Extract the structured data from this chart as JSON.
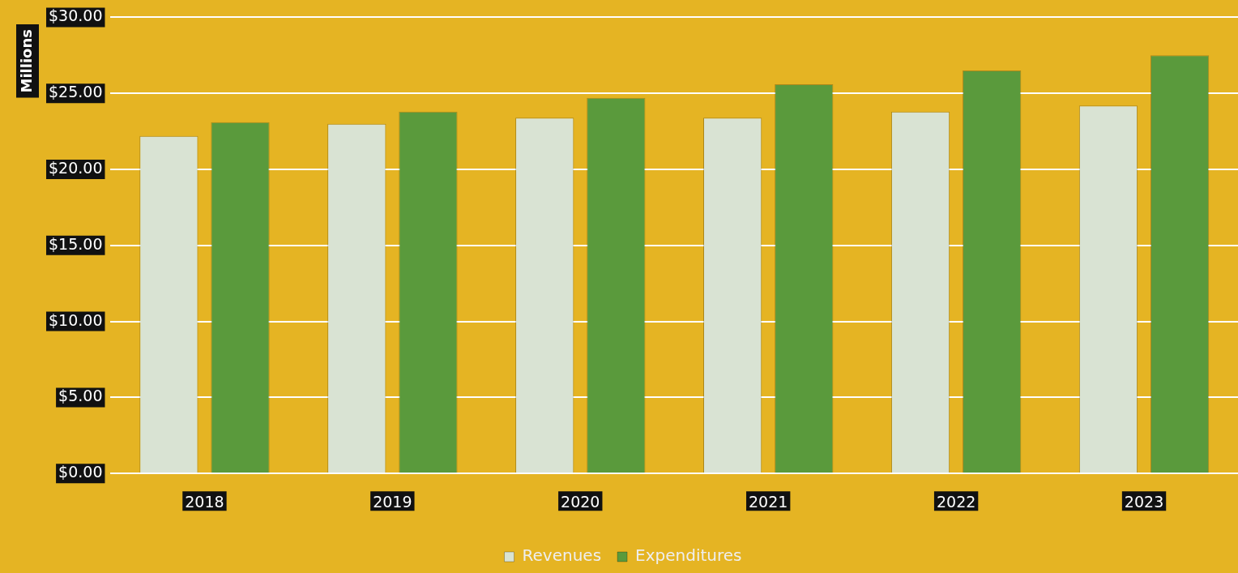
{
  "chart_data": {
    "type": "bar",
    "ylabel": "Millions",
    "categories": [
      "2018",
      "2019",
      "2020",
      "2021",
      "2022",
      "2023"
    ],
    "series": [
      {
        "name": "Revenues",
        "color": "#d9e3d3",
        "values": [
          22.2,
          23.0,
          23.4,
          23.4,
          23.8,
          24.2
        ]
      },
      {
        "name": "Expenditures",
        "color": "#5a9a3c",
        "values": [
          23.1,
          23.8,
          24.7,
          25.6,
          26.5,
          27.5
        ]
      }
    ],
    "ylim": [
      0,
      30
    ],
    "yticks": [
      {
        "value": 0,
        "label": "$0.00"
      },
      {
        "value": 5,
        "label": "$5.00"
      },
      {
        "value": 10,
        "label": "$10.00"
      },
      {
        "value": 15,
        "label": "$15.00"
      },
      {
        "value": 20,
        "label": "$20.00"
      },
      {
        "value": 25,
        "label": "$25.00"
      },
      {
        "value": 30,
        "label": "$30.00"
      }
    ],
    "grid": "y",
    "legend": "bottom"
  }
}
